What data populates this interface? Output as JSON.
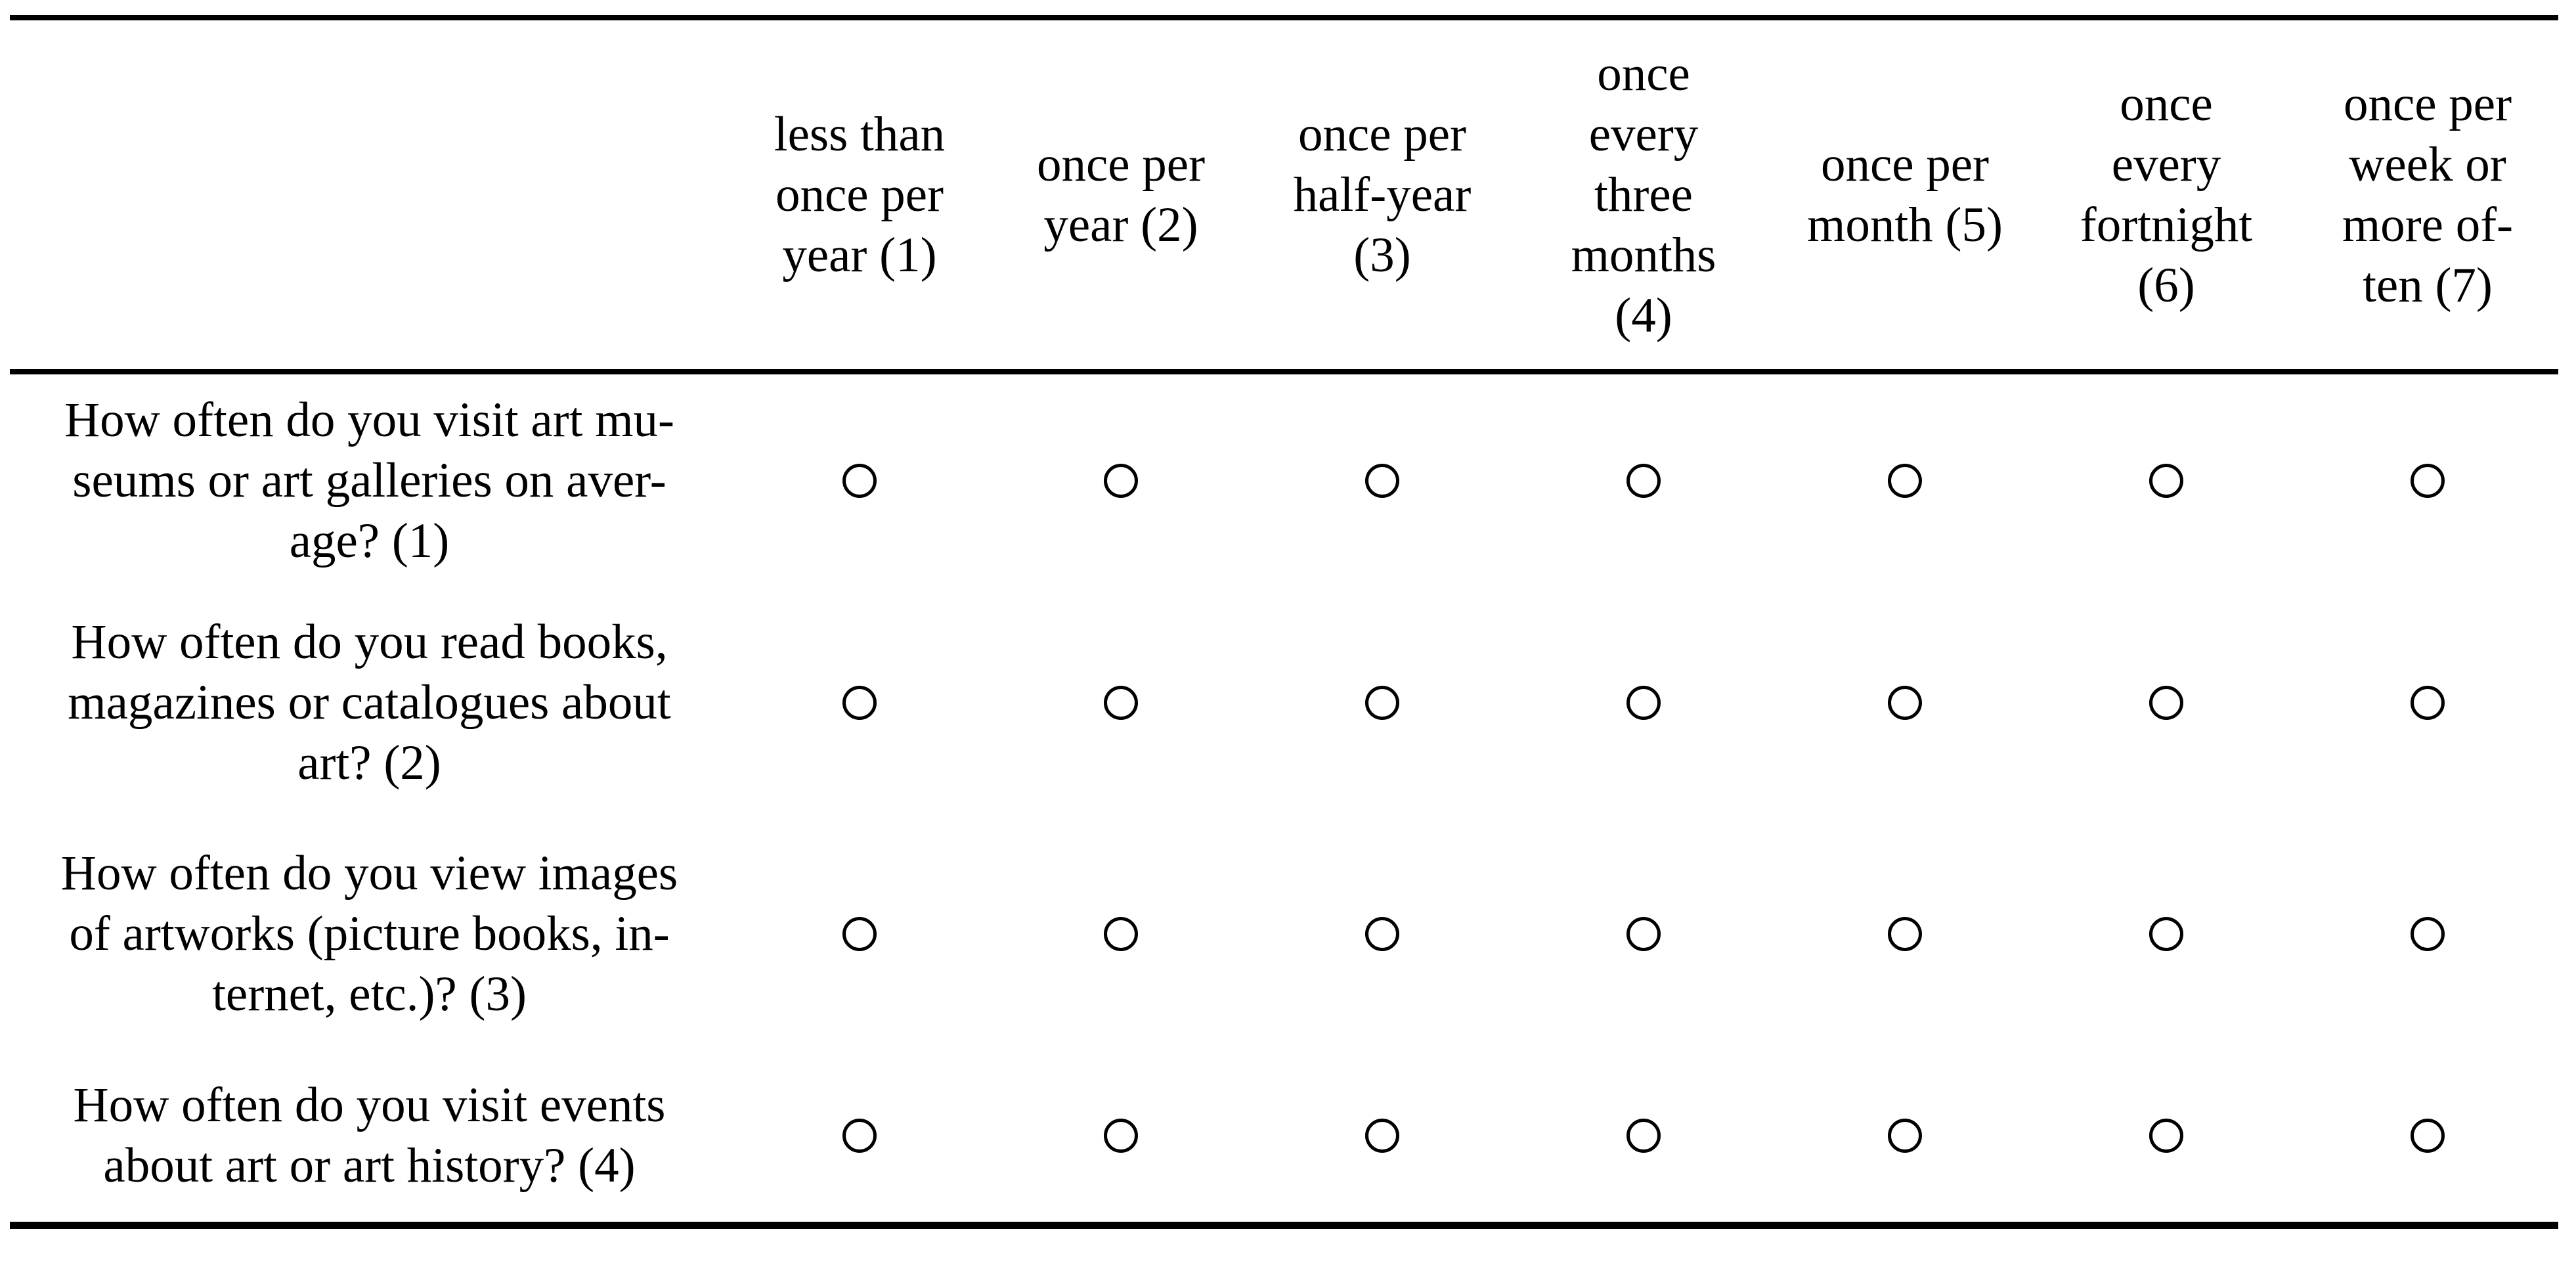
{
  "survey_table": {
    "description": "frequency-response matrix with empty radio buttons",
    "radio_state": "unselected",
    "colors": {
      "text": "#000000",
      "rules": "#000000",
      "background": "#ffffff",
      "radio_outline": "#000000",
      "radio_fill": "#ffffff"
    },
    "columns": [
      {
        "text": "less than once per year (1)",
        "lines": [
          "less than",
          "once per",
          "year (1)"
        ]
      },
      {
        "text": "once per year (2)",
        "lines": [
          "once per",
          "year (2)"
        ]
      },
      {
        "text": "once per half-year (3)",
        "lines": [
          "once per",
          "half-year",
          "(3)"
        ]
      },
      {
        "text": "once every three months (4)",
        "lines": [
          "once",
          "every",
          "three",
          "months",
          "(4)"
        ]
      },
      {
        "text": "once per month (5)",
        "lines": [
          "once per",
          "month (5)"
        ]
      },
      {
        "text": "once every fortnight (6)",
        "lines": [
          "once",
          "every",
          "fortnight",
          "(6)"
        ]
      },
      {
        "text": "once per week or more often (7)",
        "lines": [
          "once per",
          "week or",
          "more of-",
          "ten (7)"
        ]
      }
    ],
    "rows": [
      {
        "text": "How often do you visit art museums or art galleries on average? (1)",
        "lines": [
          "How often do you visit art mu-",
          "seums or art galleries on aver-",
          "age? (1)"
        ]
      },
      {
        "text": "How often do you read books, magazines or catalogues about art? (2)",
        "lines": [
          "How often do you read books,",
          "magazines or catalogues about",
          "art? (2)"
        ]
      },
      {
        "text": "How often do you view images of artworks (picture books, internet, etc.)? (3)",
        "lines": [
          "How often do you view images",
          "of artworks (picture books, in-",
          "ternet, etc.)? (3)"
        ]
      },
      {
        "text": "How often do you visit events about art or art history? (4)",
        "lines": [
          "How often do you visit events",
          "about art or art history? (4)"
        ]
      }
    ]
  }
}
